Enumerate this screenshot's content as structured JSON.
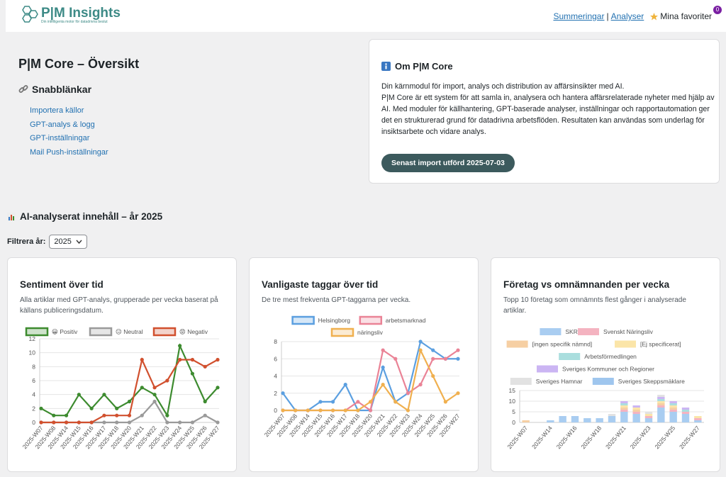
{
  "header": {
    "logo": "P|M Insights",
    "tagline": "Din intelligenta motor för datadrivna beslut",
    "nav": [
      "Summeringar",
      "|",
      "Analyser"
    ],
    "favorites": "Mina favoriter",
    "favorites_count": 0
  },
  "overview": {
    "title": "P|M Core – Översikt",
    "quicklinks_title": "Snabblänkar",
    "links": [
      "Importera källor",
      "GPT-analys & logg",
      "GPT-inställningar",
      "Mail Push-inställningar"
    ]
  },
  "info": {
    "title": "Om P|M Core",
    "lead": "Din kärnmodul för import, analys och distribution av affärsinsikter med AI.",
    "body": "P|M Core är ett system för att samla in, analysera och hantera affärsrelaterade nyheter med hjälp av AI. Med moduler för källhantering, GPT-baserade analyser, inställningar och rapportautomation ger det en strukturerad grund för datadrivna arbetsflöden. Resultaten kan användas som underlag för insiktsarbete och vidare analys.",
    "button": "Senast import utförd 2025-07-03"
  },
  "section": {
    "title": "AI-analyserat innehåll – år 2025",
    "filter_label": "Filtrera år:",
    "filter_value": "2025"
  },
  "chart_data": [
    {
      "type": "line",
      "title": "Sentiment över tid",
      "subtitle": "Alla artiklar med GPT-analys, grupperade per vecka baserat på källans publiceringsdatum.",
      "categories": [
        "2025-W07",
        "2025-W08",
        "2025-W14",
        "2025-W15",
        "2025-W16",
        "2025-W17",
        "2025-W18",
        "2025-W20",
        "2025-W21",
        "2025-W22",
        "2025-W23",
        "2025-W24",
        "2025-W25",
        "2025-W26",
        "2025-W27"
      ],
      "series": [
        {
          "name": "😀 Positiv",
          "color": "#3d8b2f",
          "values": [
            2,
            1,
            1,
            4,
            2,
            4,
            2,
            3,
            5,
            4,
            1,
            11,
            7,
            3,
            5
          ]
        },
        {
          "name": "😐 Neutral",
          "color": "#9a9a9a",
          "values": [
            0,
            0,
            0,
            0,
            0,
            0,
            0,
            0,
            1,
            3,
            0,
            0,
            0,
            1,
            0
          ]
        },
        {
          "name": "😡 Negativ",
          "color": "#d1502e",
          "values": [
            0,
            0,
            0,
            0,
            0,
            1,
            1,
            1,
            9,
            5,
            6,
            9,
            9,
            8,
            9
          ]
        }
      ],
      "ylim": [
        0,
        12
      ],
      "yticks": [
        0,
        2,
        4,
        6,
        8,
        10,
        12
      ],
      "grid": true
    },
    {
      "type": "line",
      "title": "Vanligaste taggar över tid",
      "subtitle": "De tre mest frekventa GPT-taggarna per vecka.",
      "categories": [
        "2025-W07",
        "2025-W08",
        "2025-W14",
        "2025-W15",
        "2025-W16",
        "2025-W17",
        "2025-W18",
        "2025-W20",
        "2025-W21",
        "2025-W22",
        "2025-W23",
        "2025-W24",
        "2025-W25",
        "2025-W26",
        "2025-W27"
      ],
      "series": [
        {
          "name": "Helsingborg",
          "color": "#5b9fe0",
          "values": [
            2,
            0,
            0,
            1,
            1,
            3,
            0,
            0,
            5,
            1,
            2,
            8,
            7,
            6,
            6
          ]
        },
        {
          "name": "arbetsmarknad",
          "color": "#ea8396",
          "values": [
            0,
            0,
            0,
            0,
            0,
            0,
            1,
            0,
            7,
            6,
            2,
            3,
            6,
            6,
            7
          ]
        },
        {
          "name": "näringsliv",
          "color": "#f0b04f",
          "values": [
            0,
            0,
            0,
            0,
            0,
            0,
            0,
            1,
            3,
            1,
            0,
            7,
            4,
            1,
            2
          ]
        }
      ],
      "ylim": [
        0,
        8
      ],
      "yticks": [
        0,
        2,
        4,
        6,
        8
      ],
      "grid": true
    },
    {
      "type": "stacked-bar",
      "title": "Företag vs omnämnanden per vecka",
      "subtitle": "Topp 10 företag som omnämnts flest gånger i analyserade artiklar.",
      "categories": [
        "2025-W07",
        null,
        "2025-W14",
        null,
        "2025-W16",
        null,
        "2025-W18",
        null,
        "2025-W21",
        null,
        "2025-W23",
        null,
        "2025-W25",
        null,
        "2025-W27"
      ],
      "series": [
        {
          "name": "SKR",
          "color": "#a9cdf1",
          "values": [
            0,
            0,
            1,
            3,
            3,
            2,
            2,
            3,
            5,
            4,
            2,
            7,
            5,
            4,
            1
          ]
        },
        {
          "name": "Svenskt Näringsliv",
          "color": "#f4b3c0",
          "values": [
            0,
            0,
            0,
            0,
            0,
            0,
            0,
            0,
            1,
            1,
            1,
            1,
            1,
            1,
            1
          ]
        },
        {
          "name": "[ingen specifik nämnd]",
          "color": "#f6cfa3",
          "values": [
            1,
            0,
            0,
            0,
            0,
            0,
            0,
            0,
            1,
            1,
            0,
            1,
            1,
            0,
            0
          ]
        },
        {
          "name": "[Ej specificerat]",
          "color": "#fbe5a8",
          "values": [
            0,
            0,
            0,
            0,
            0,
            0,
            0,
            0,
            1,
            1,
            1,
            1,
            1,
            0,
            1
          ]
        },
        {
          "name": "Arbetsförmedlingen",
          "color": "#aadede",
          "values": [
            0,
            0,
            0,
            0,
            0,
            0,
            0,
            0,
            1,
            0,
            0,
            1,
            1,
            1,
            0
          ]
        },
        {
          "name": "Sveriges Kommuner och Regioner",
          "color": "#cbb5f3",
          "values": [
            0,
            0,
            0,
            0,
            0,
            0,
            0,
            0,
            1,
            1,
            0,
            1,
            1,
            1,
            0
          ]
        },
        {
          "name": "Sveriges Hamnar",
          "color": "#e2e2e2",
          "values": [
            0,
            0,
            0,
            0,
            0,
            0,
            0,
            1,
            0,
            0,
            1,
            1,
            0,
            0,
            0
          ]
        },
        {
          "name": "Sveriges Skeppsmäklare",
          "color": "#9fc6ee",
          "values": [
            0,
            0,
            0,
            0,
            0,
            0,
            0,
            0,
            0,
            0,
            0,
            0,
            0,
            0,
            0
          ]
        }
      ],
      "ylim": [
        0,
        15
      ],
      "yticks": [
        0,
        5,
        10,
        15
      ],
      "grid": true
    }
  ]
}
